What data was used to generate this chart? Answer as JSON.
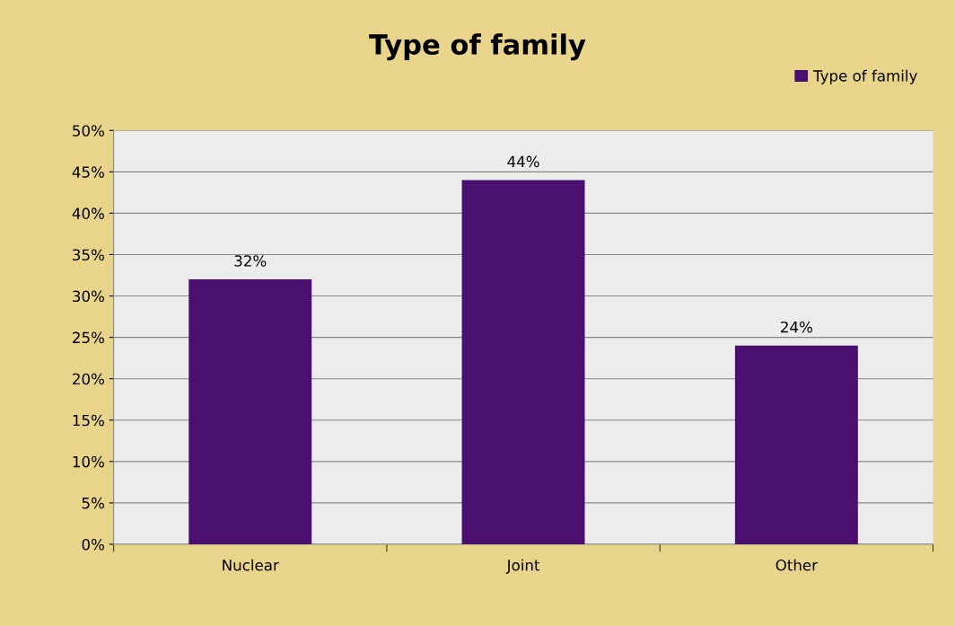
{
  "chart_data": {
    "type": "bar",
    "title": "Type of family",
    "categories": [
      "Nuclear",
      "Joint",
      "Other"
    ],
    "series": [
      {
        "name": "Type of family",
        "color": "#4a1070",
        "values": [
          32,
          44,
          24
        ],
        "value_labels": [
          "32%",
          "44%",
          "24%"
        ]
      }
    ],
    "ylim": [
      0,
      50
    ],
    "yticks": [
      {
        "value": 0,
        "label": "0%"
      },
      {
        "value": 5,
        "label": "5%"
      },
      {
        "value": 10,
        "label": "10%"
      },
      {
        "value": 15,
        "label": "15%"
      },
      {
        "value": 20,
        "label": "20%"
      },
      {
        "value": 25,
        "label": "25%"
      },
      {
        "value": 30,
        "label": "30%"
      },
      {
        "value": 35,
        "label": "35%"
      },
      {
        "value": 40,
        "label": "40%"
      },
      {
        "value": 45,
        "label": "45%"
      },
      {
        "value": 50,
        "label": "50%"
      }
    ],
    "grid": "y",
    "legend": "top right"
  }
}
